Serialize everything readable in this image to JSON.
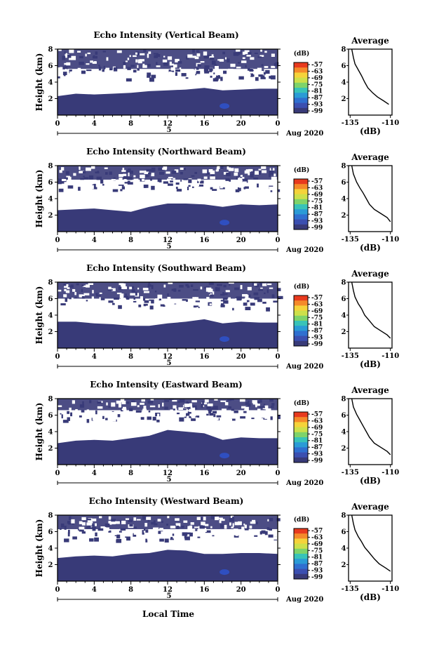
{
  "figure": {
    "x_axis_label": "Local Time",
    "date_label": "Aug 2020",
    "date_marker": "5"
  },
  "colorbar": {
    "unit": "(dB)",
    "ticks": [
      "-57",
      "-63",
      "-69",
      "-75",
      "-81",
      "-87",
      "-93",
      "-99"
    ],
    "colors": [
      "#e83a1e",
      "#f58a2a",
      "#f5d33a",
      "#cde04a",
      "#7ed36a",
      "#38c3b8",
      "#2a9bd6",
      "#2f6fd0",
      "#3b4fb0",
      "#383a78"
    ]
  },
  "chart_data": [
    {
      "type": "heatmap",
      "title": "Echo Intensity (Vertical Beam)",
      "ylabel": "Height (km)",
      "xlim": [
        0,
        24
      ],
      "ylim": [
        0,
        8
      ],
      "xticks": [
        "0",
        "4",
        "8",
        "12",
        "16",
        "20",
        "0"
      ],
      "yticks": [
        "2",
        "4",
        "6",
        "8"
      ],
      "boundary_x": [
        0,
        2,
        4,
        6,
        8,
        10,
        12,
        14,
        16,
        18,
        20,
        22,
        24
      ],
      "boundary_y": [
        2.3,
        2.6,
        2.5,
        2.6,
        2.7,
        2.9,
        3.0,
        3.1,
        3.3,
        3.0,
        3.1,
        3.2,
        3.2
      ],
      "upper_layer_km": [
        5.6,
        8.0
      ],
      "average_profile": {
        "title": "Average",
        "xlabel": "(dB)",
        "xticks": [
          "-135",
          "-110"
        ],
        "yticks": [
          "2",
          "4",
          "6",
          "8"
        ],
        "x": [
          -134,
          -133,
          -132,
          -130,
          -128,
          -126,
          -124,
          -121,
          -118,
          -114,
          -111
        ],
        "y": [
          8.0,
          7.0,
          6.2,
          5.5,
          4.8,
          4.0,
          3.3,
          2.7,
          2.2,
          1.7,
          1.3
        ]
      }
    },
    {
      "type": "heatmap",
      "title": "Echo Intensity (Northward Beam)",
      "ylabel": "Height (km)",
      "xlim": [
        0,
        24
      ],
      "ylim": [
        0,
        8
      ],
      "xticks": [
        "0",
        "4",
        "8",
        "12",
        "16",
        "20",
        "0"
      ],
      "yticks": [
        "2",
        "4",
        "6",
        "8"
      ],
      "boundary_x": [
        0,
        2,
        4,
        6,
        8,
        10,
        12,
        14,
        16,
        18,
        20,
        22,
        24
      ],
      "boundary_y": [
        2.6,
        2.7,
        2.8,
        2.6,
        2.4,
        3.0,
        3.4,
        3.4,
        3.3,
        3.0,
        3.3,
        3.2,
        3.3
      ],
      "upper_layer_km": [
        6.3,
        8.0
      ],
      "average_profile": {
        "title": "Average",
        "xlabel": "(dB)",
        "xticks": [
          "-135",
          "-110"
        ],
        "yticks": [
          "2",
          "4",
          "6",
          "8"
        ],
        "x": [
          -134,
          -133,
          -131,
          -129,
          -127,
          -125,
          -123,
          -120,
          -116,
          -112,
          -110
        ],
        "y": [
          8.0,
          7.0,
          6.0,
          5.3,
          4.7,
          4.0,
          3.3,
          2.7,
          2.2,
          1.7,
          1.2
        ]
      }
    },
    {
      "type": "heatmap",
      "title": "Echo Intensity (Southward Beam)",
      "ylabel": "Height (km)",
      "xlim": [
        0,
        24
      ],
      "ylim": [
        0,
        8
      ],
      "xticks": [
        "0",
        "4",
        "8",
        "12",
        "16",
        "20",
        "0"
      ],
      "yticks": [
        "2",
        "4",
        "6",
        "8"
      ],
      "boundary_x": [
        0,
        2,
        4,
        6,
        8,
        10,
        12,
        14,
        16,
        18,
        20,
        22,
        24
      ],
      "boundary_y": [
        3.2,
        3.2,
        3.0,
        2.9,
        2.7,
        2.7,
        3.0,
        3.2,
        3.5,
        3.0,
        3.2,
        3.1,
        3.1
      ],
      "upper_layer_km": [
        6.0,
        8.0
      ],
      "average_profile": {
        "title": "Average",
        "xlabel": "(dB)",
        "xticks": [
          "-135",
          "-110"
        ],
        "yticks": [
          "2",
          "4",
          "6",
          "8"
        ],
        "x": [
          -134,
          -133,
          -132,
          -130,
          -128,
          -126,
          -123,
          -120,
          -116,
          -112,
          -110
        ],
        "y": [
          8.0,
          7.0,
          6.2,
          5.4,
          4.8,
          4.0,
          3.3,
          2.6,
          2.1,
          1.6,
          1.2
        ]
      }
    },
    {
      "type": "heatmap",
      "title": "Echo Intensity (Eastward Beam)",
      "ylabel": "Height (km)",
      "xlim": [
        0,
        24
      ],
      "ylim": [
        0,
        8
      ],
      "xticks": [
        "0",
        "4",
        "8",
        "12",
        "16",
        "20",
        "0"
      ],
      "yticks": [
        "2",
        "4",
        "6",
        "8"
      ],
      "boundary_x": [
        0,
        2,
        4,
        6,
        8,
        10,
        12,
        14,
        16,
        18,
        20,
        22,
        24
      ],
      "boundary_y": [
        2.6,
        2.9,
        3.0,
        2.9,
        3.2,
        3.5,
        4.2,
        4.0,
        3.8,
        3.0,
        3.3,
        3.2,
        3.2
      ],
      "upper_layer_km": [
        6.6,
        8.0
      ],
      "average_profile": {
        "title": "Average",
        "xlabel": "(dB)",
        "xticks": [
          "-135",
          "-110"
        ],
        "yticks": [
          "2",
          "4",
          "6",
          "8"
        ],
        "x": [
          -134,
          -133,
          -131,
          -129,
          -127,
          -125,
          -123,
          -120,
          -116,
          -112,
          -110
        ],
        "y": [
          8.0,
          7.0,
          6.1,
          5.4,
          4.7,
          4.0,
          3.3,
          2.6,
          2.1,
          1.6,
          1.2
        ]
      }
    },
    {
      "type": "heatmap",
      "title": "Echo Intensity (Westward Beam)",
      "ylabel": "Height (km)",
      "xlim": [
        0,
        24
      ],
      "ylim": [
        0,
        8
      ],
      "xticks": [
        "0",
        "4",
        "8",
        "12",
        "16",
        "20",
        "0"
      ],
      "yticks": [
        "2",
        "4",
        "6",
        "8"
      ],
      "boundary_x": [
        0,
        2,
        4,
        6,
        8,
        10,
        12,
        14,
        16,
        18,
        20,
        22,
        24
      ],
      "boundary_y": [
        2.8,
        3.0,
        3.1,
        3.0,
        3.3,
        3.4,
        3.8,
        3.7,
        3.3,
        3.3,
        3.4,
        3.4,
        3.3
      ],
      "upper_layer_km": [
        6.3,
        8.0
      ],
      "average_profile": {
        "title": "Average",
        "xlabel": "(dB)",
        "xticks": [
          "-135",
          "-110"
        ],
        "yticks": [
          "2",
          "4",
          "6",
          "8"
        ],
        "x": [
          -134,
          -133,
          -132,
          -130,
          -128,
          -126,
          -123,
          -120,
          -117,
          -113,
          -110
        ],
        "y": [
          8.0,
          7.0,
          6.2,
          5.4,
          4.8,
          4.1,
          3.4,
          2.7,
          2.1,
          1.6,
          1.2
        ]
      }
    }
  ]
}
